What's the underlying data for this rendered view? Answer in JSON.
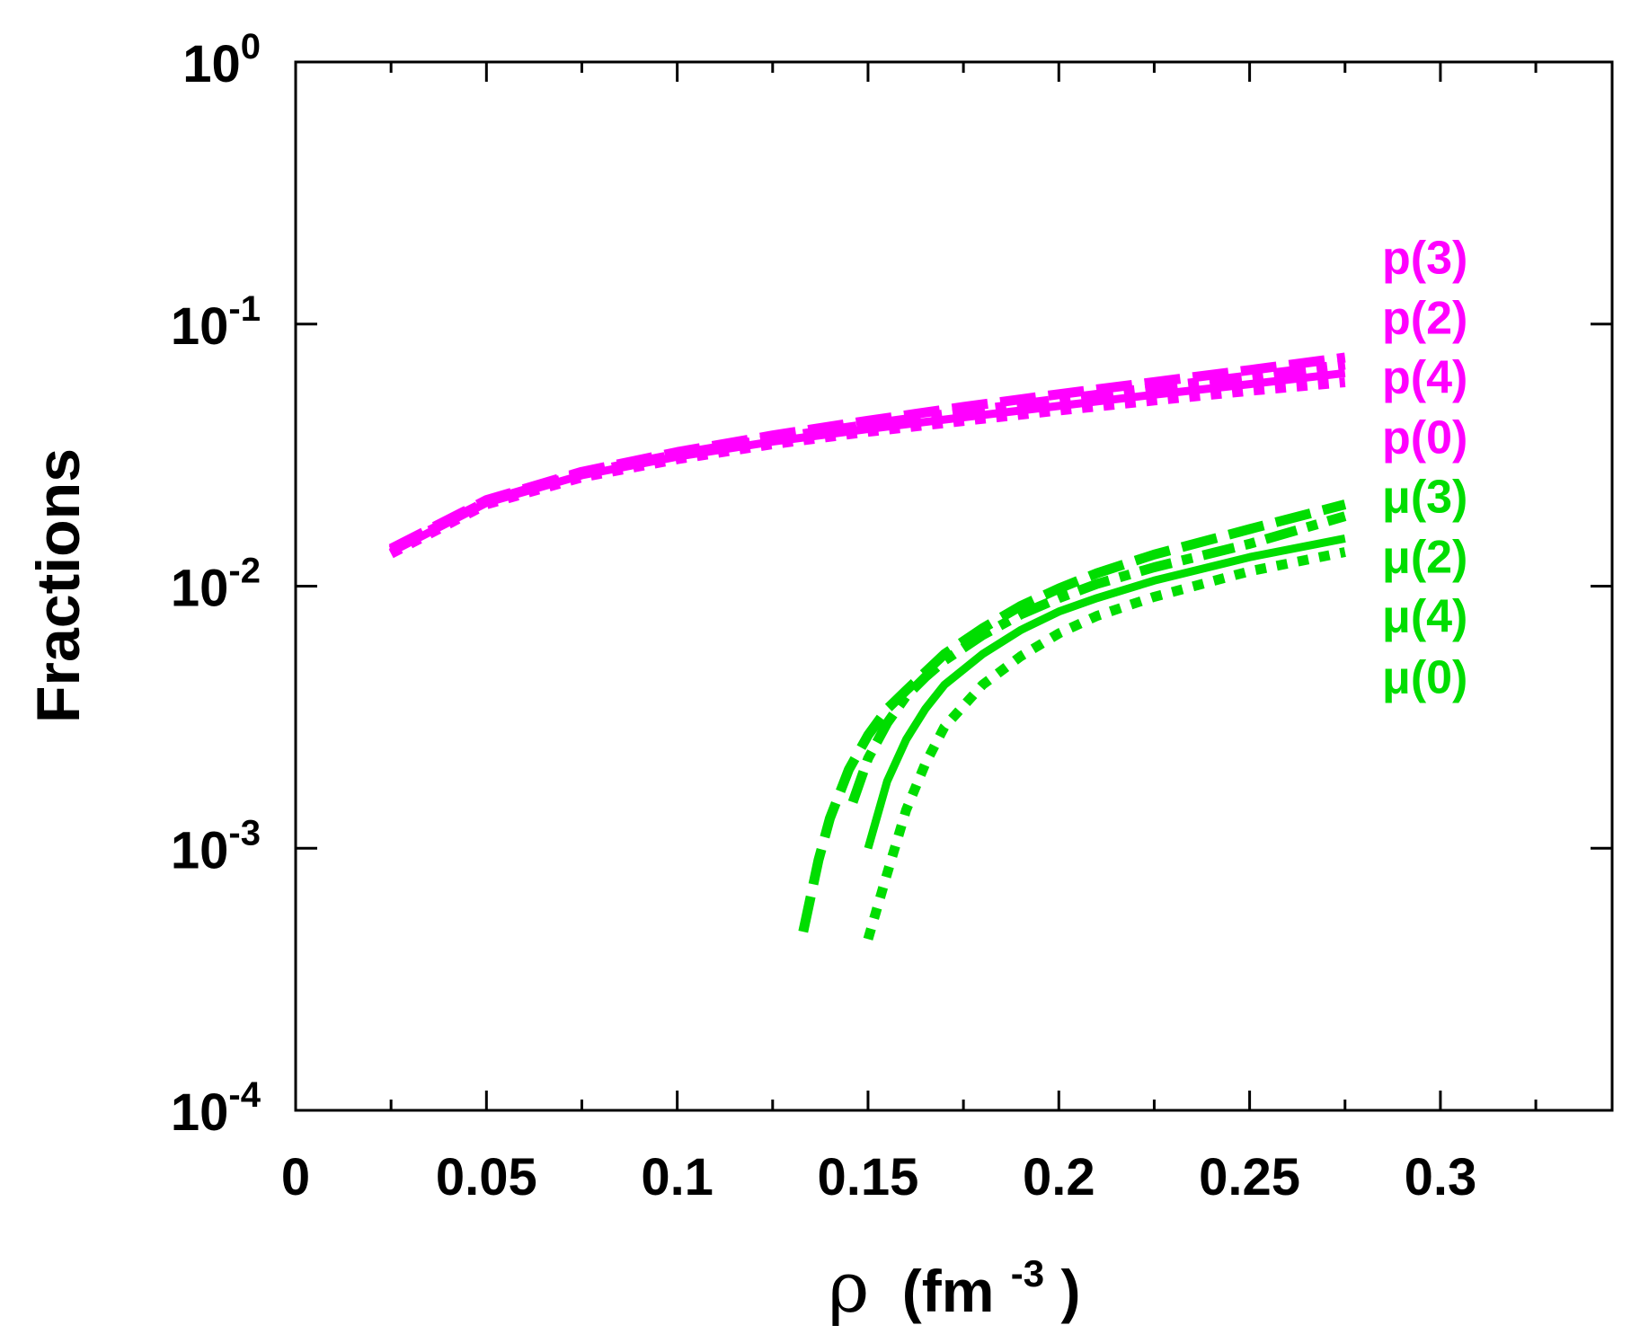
{
  "chart_data": {
    "type": "line",
    "title": "",
    "xlabel": {
      "symbol": "ρ",
      "unit_base": "(fm",
      "unit_exp": "-3",
      "unit_close": ")"
    },
    "ylabel": "Fractions",
    "xlim": [
      0,
      0.345
    ],
    "ylim": [
      0.0001,
      1
    ],
    "yscale": "log",
    "x_ticks": [
      {
        "value": 0,
        "label": "0"
      },
      {
        "value": 0.05,
        "label": "0.05"
      },
      {
        "value": 0.1,
        "label": "0.1"
      },
      {
        "value": 0.15,
        "label": "0.15"
      },
      {
        "value": 0.2,
        "label": "0.2"
      },
      {
        "value": 0.25,
        "label": "0.25"
      },
      {
        "value": 0.3,
        "label": "0.3"
      }
    ],
    "x_minor_ticks": [
      0.025,
      0.075,
      0.125,
      0.175,
      0.225,
      0.275,
      0.325
    ],
    "y_ticks": [
      {
        "value": 1,
        "base": "10",
        "exp": "0"
      },
      {
        "value": 0.1,
        "base": "10",
        "exp": "-1"
      },
      {
        "value": 0.01,
        "base": "10",
        "exp": "-2"
      },
      {
        "value": 0.001,
        "base": "10",
        "exp": "-3"
      },
      {
        "value": 0.0001,
        "base": "10",
        "exp": "-4"
      }
    ],
    "series": [
      {
        "name": "p(0)",
        "color": "#ff00ff",
        "dash": "dotted",
        "x": [
          0.025,
          0.05,
          0.075,
          0.1,
          0.125,
          0.15,
          0.175,
          0.2,
          0.225,
          0.25,
          0.275
        ],
        "y": [
          0.0133,
          0.0205,
          0.026,
          0.0305,
          0.0348,
          0.0388,
          0.0427,
          0.0468,
          0.0511,
          0.0556,
          0.06
        ]
      },
      {
        "name": "p(4)",
        "color": "#ff00ff",
        "dash": "solid",
        "x": [
          0.025,
          0.05,
          0.075,
          0.1,
          0.125,
          0.15,
          0.175,
          0.2,
          0.225,
          0.25,
          0.275
        ],
        "y": [
          0.0135,
          0.0208,
          0.0265,
          0.0312,
          0.0356,
          0.0398,
          0.0441,
          0.0487,
          0.0538,
          0.059,
          0.065
        ]
      },
      {
        "name": "p(2)",
        "color": "#ff00ff",
        "dash": "dashdot",
        "x": [
          0.025,
          0.05,
          0.075,
          0.1,
          0.125,
          0.15,
          0.175,
          0.2,
          0.225,
          0.25,
          0.275
        ],
        "y": [
          0.0137,
          0.021,
          0.0269,
          0.0318,
          0.0366,
          0.0413,
          0.0463,
          0.0515,
          0.0572,
          0.0632,
          0.07
        ]
      },
      {
        "name": "p(3)",
        "color": "#ff00ff",
        "dash": "dashed",
        "x": [
          0.025,
          0.05,
          0.075,
          0.1,
          0.125,
          0.15,
          0.175,
          0.2,
          0.225,
          0.25,
          0.275
        ],
        "y": [
          0.0139,
          0.0213,
          0.0273,
          0.0325,
          0.0376,
          0.0428,
          0.0483,
          0.054,
          0.0601,
          0.0668,
          0.0745
        ]
      },
      {
        "name": "μ(0)",
        "color": "#00dd00",
        "dash": "dotted",
        "x": [
          0.15,
          0.155,
          0.16,
          0.165,
          0.17,
          0.18,
          0.19,
          0.2,
          0.21,
          0.225,
          0.25,
          0.275
        ],
        "y": [
          0.00045,
          0.0008,
          0.0014,
          0.0021,
          0.0029,
          0.0042,
          0.0054,
          0.0066,
          0.0077,
          0.0091,
          0.0114,
          0.0135
        ]
      },
      {
        "name": "μ(4)",
        "color": "#00dd00",
        "dash": "solid",
        "x": [
          0.15,
          0.155,
          0.16,
          0.165,
          0.17,
          0.18,
          0.19,
          0.2,
          0.21,
          0.225,
          0.25,
          0.275
        ],
        "y": [
          0.001,
          0.0018,
          0.0026,
          0.0034,
          0.0042,
          0.0055,
          0.0068,
          0.008,
          0.009,
          0.0105,
          0.0129,
          0.0152
        ]
      },
      {
        "name": "μ(2)",
        "color": "#00dd00",
        "dash": "dashdot",
        "x": [
          0.146,
          0.15,
          0.155,
          0.16,
          0.165,
          0.17,
          0.18,
          0.19,
          0.2,
          0.21,
          0.225,
          0.25,
          0.275
        ],
        "y": [
          0.0015,
          0.0022,
          0.003,
          0.0038,
          0.0045,
          0.0052,
          0.0065,
          0.0078,
          0.009,
          0.0102,
          0.0118,
          0.0145,
          0.0185
        ]
      },
      {
        "name": "μ(3)",
        "color": "#00dd00",
        "dash": "dashed",
        "x": [
          0.133,
          0.137,
          0.14,
          0.145,
          0.15,
          0.155,
          0.16,
          0.165,
          0.17,
          0.18,
          0.19,
          0.2,
          0.21,
          0.225,
          0.25,
          0.275
        ],
        "y": [
          0.00048,
          0.0009,
          0.0013,
          0.002,
          0.0027,
          0.0034,
          0.004,
          0.0047,
          0.0055,
          0.0069,
          0.0084,
          0.0098,
          0.0112,
          0.0132,
          0.0165,
          0.0205
        ]
      }
    ],
    "annotations": [
      {
        "text": "p(3)",
        "color": "#ff00ff",
        "y": 0.18
      },
      {
        "text": "p(2)",
        "color": "#ff00ff",
        "y": 0.106
      },
      {
        "text": "p(4)",
        "color": "#ff00ff",
        "y": 0.063
      },
      {
        "text": "p(0)",
        "color": "#ff00ff",
        "y": 0.037
      },
      {
        "text": "μ(3)",
        "color": "#00dd00",
        "y": 0.022
      },
      {
        "text": "μ(2)",
        "color": "#00dd00",
        "y": 0.013
      },
      {
        "text": "μ(4)",
        "color": "#00dd00",
        "y": 0.0077
      },
      {
        "text": "μ(0)",
        "color": "#00dd00",
        "y": 0.0045
      }
    ]
  }
}
